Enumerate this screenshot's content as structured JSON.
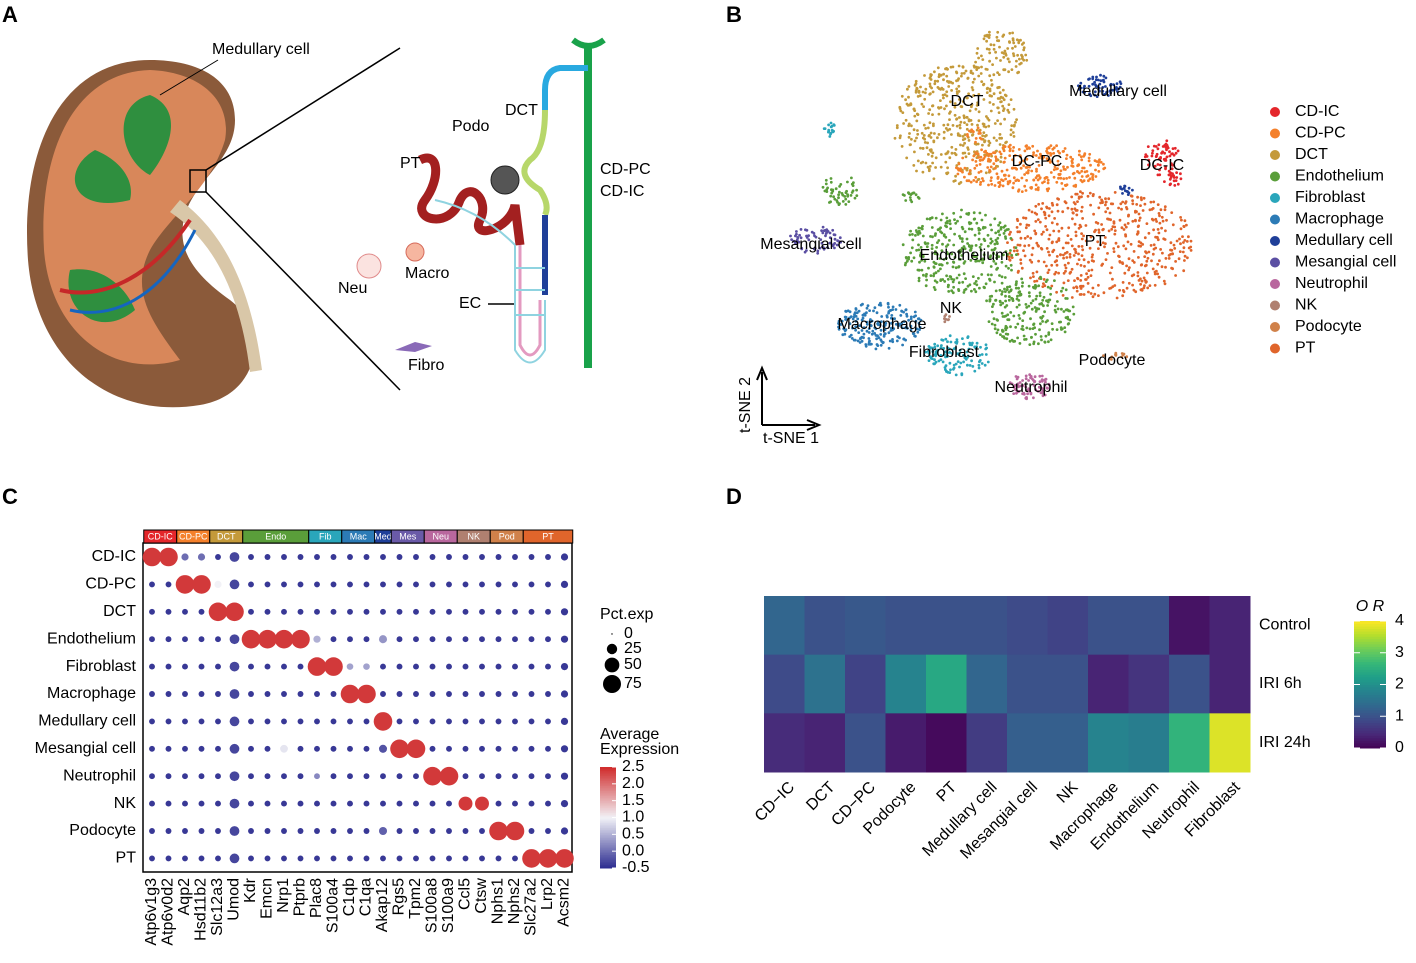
{
  "panel_labels": [
    "A",
    "B",
    "C",
    "D"
  ],
  "diagram": {
    "labels": [
      "Medullary cell",
      "DCT",
      "Podo",
      "PT",
      "CD-PC",
      "CD-IC",
      "Neu",
      "Macro",
      "EC",
      "Fibro"
    ]
  },
  "tsne": {
    "type": "scatter",
    "x_label": "t-SNE 1",
    "y_label": "t-SNE 2",
    "cell_types": [
      {
        "name": "CD-IC",
        "color": "#e4262b"
      },
      {
        "name": "CD-PC",
        "color": "#f4802b"
      },
      {
        "name": "DCT",
        "color": "#c49a3a"
      },
      {
        "name": "Endothelium",
        "color": "#5a9e3a"
      },
      {
        "name": "Fibroblast",
        "color": "#2aa6bb"
      },
      {
        "name": "Macrophage",
        "color": "#2c7bb6"
      },
      {
        "name": "Medullary cell",
        "color": "#1f3f99"
      },
      {
        "name": "Mesangial cell",
        "color": "#5b4fa3"
      },
      {
        "name": "Neutrophil",
        "color": "#b9679e"
      },
      {
        "name": "NK",
        "color": "#b08070"
      },
      {
        "name": "Podocyte",
        "color": "#d0814a"
      },
      {
        "name": "PT",
        "color": "#e0652b"
      }
    ],
    "cluster_labels": [
      "DCT",
      "Medullary cell",
      "DC-PC",
      "DC-IC",
      "PT",
      "Mesangial cell",
      "Endothelium",
      "NK",
      "Macrophage",
      "Fibroblast",
      "Podocyte",
      "Neutrophil"
    ]
  },
  "dotplot": {
    "type": "dot",
    "groups": [
      {
        "name": "CD-IC",
        "color": "#e4262b",
        "genes": [
          "Atp6v1g3",
          "Atp6v0d2"
        ]
      },
      {
        "name": "CD-PC",
        "color": "#f4802b",
        "genes": [
          "Aqp2",
          "Hsd11b2"
        ]
      },
      {
        "name": "DCT",
        "color": "#c49a3a",
        "genes": [
          "Slc12a3",
          "Umod"
        ]
      },
      {
        "name": "Endo",
        "color": "#5a9e3a",
        "genes": [
          "Kdr",
          "Emcn",
          "Nrp1",
          "Ptprb"
        ]
      },
      {
        "name": "Fib",
        "color": "#2aa6bb",
        "genes": [
          "Plac8",
          "S100a4"
        ]
      },
      {
        "name": "Mac",
        "color": "#2c7bb6",
        "genes": [
          "C1qb",
          "C1qa"
        ]
      },
      {
        "name": "Med",
        "color": "#1f3f99",
        "genes": [
          "Akap12"
        ]
      },
      {
        "name": "Mes",
        "color": "#6a5aa8",
        "genes": [
          "Rgs5",
          "Tpm2"
        ]
      },
      {
        "name": "Neu",
        "color": "#b9679e",
        "genes": [
          "S100a8",
          "S100a9"
        ]
      },
      {
        "name": "NK",
        "color": "#b08070",
        "genes": [
          "Ccl5",
          "Ctsw"
        ]
      },
      {
        "name": "Pod",
        "color": "#d0814a",
        "genes": [
          "Nphs1",
          "Nphs2"
        ]
      },
      {
        "name": "PT",
        "color": "#e0652b",
        "genes": [
          "Slc27a2",
          "Lrp2",
          "Acsm2"
        ]
      }
    ],
    "rows": [
      "CD-IC",
      "CD-PC",
      "DCT",
      "Endothelium",
      "Fibroblast",
      "Macrophage",
      "Medullary cell",
      "Mesangial cell",
      "Neutrophil",
      "NK",
      "Podocyte",
      "PT"
    ],
    "pct": [
      [
        80,
        80,
        12,
        12,
        8,
        22,
        8,
        8,
        8,
        8,
        8,
        8,
        8,
        8,
        8,
        8,
        8,
        8,
        8,
        8,
        8,
        8,
        8,
        8,
        8,
        12
      ],
      [
        8,
        8,
        80,
        80,
        12,
        22,
        8,
        8,
        8,
        8,
        8,
        8,
        8,
        8,
        8,
        8,
        8,
        8,
        8,
        8,
        8,
        8,
        8,
        8,
        8,
        12
      ],
      [
        8,
        8,
        8,
        8,
        80,
        80,
        8,
        8,
        8,
        8,
        8,
        8,
        8,
        8,
        8,
        8,
        8,
        8,
        8,
        8,
        8,
        8,
        8,
        8,
        8,
        12
      ],
      [
        8,
        8,
        8,
        8,
        8,
        22,
        80,
        80,
        80,
        80,
        12,
        8,
        8,
        8,
        15,
        8,
        8,
        8,
        8,
        8,
        8,
        8,
        8,
        8,
        8,
        12
      ],
      [
        8,
        8,
        8,
        8,
        8,
        22,
        8,
        8,
        8,
        8,
        80,
        80,
        10,
        10,
        8,
        8,
        8,
        8,
        8,
        8,
        8,
        8,
        8,
        8,
        8,
        12
      ],
      [
        8,
        8,
        8,
        8,
        8,
        22,
        8,
        8,
        8,
        8,
        8,
        8,
        80,
        80,
        8,
        8,
        8,
        8,
        8,
        8,
        8,
        8,
        8,
        8,
        8,
        12
      ],
      [
        8,
        8,
        8,
        8,
        8,
        22,
        8,
        8,
        8,
        8,
        8,
        8,
        8,
        8,
        80,
        8,
        8,
        8,
        8,
        8,
        8,
        8,
        8,
        8,
        8,
        12
      ],
      [
        8,
        8,
        8,
        8,
        8,
        22,
        8,
        8,
        14,
        8,
        8,
        8,
        8,
        8,
        15,
        80,
        80,
        8,
        8,
        8,
        8,
        8,
        8,
        8,
        8,
        12
      ],
      [
        8,
        8,
        8,
        8,
        8,
        22,
        8,
        8,
        8,
        8,
        8,
        8,
        8,
        8,
        8,
        8,
        8,
        80,
        80,
        8,
        8,
        8,
        8,
        8,
        8,
        12
      ],
      [
        8,
        8,
        8,
        8,
        8,
        22,
        8,
        8,
        8,
        8,
        8,
        8,
        8,
        8,
        8,
        8,
        8,
        8,
        8,
        45,
        45,
        8,
        8,
        8,
        8,
        12
      ],
      [
        8,
        8,
        8,
        8,
        8,
        22,
        8,
        8,
        8,
        8,
        8,
        8,
        8,
        8,
        15,
        8,
        8,
        8,
        8,
        8,
        8,
        80,
        80,
        8,
        8,
        12
      ],
      [
        8,
        8,
        8,
        8,
        8,
        22,
        8,
        8,
        8,
        8,
        8,
        8,
        8,
        8,
        8,
        8,
        8,
        8,
        8,
        8,
        8,
        8,
        8,
        80,
        80,
        80
      ]
    ],
    "expr": [
      [
        2.4,
        2.4,
        0,
        0,
        -0.4,
        -0.3,
        -0.4,
        -0.4,
        -0.4,
        -0.4,
        -0.4,
        -0.4,
        -0.4,
        -0.4,
        -0.4,
        -0.4,
        -0.4,
        -0.4,
        -0.4,
        -0.4,
        -0.4,
        -0.4,
        -0.4,
        -0.4,
        -0.4,
        -0.4
      ],
      [
        -0.4,
        -0.4,
        2.4,
        2.4,
        1,
        -0.3,
        -0.4,
        -0.4,
        -0.4,
        -0.4,
        -0.4,
        -0.4,
        -0.4,
        -0.4,
        -0.4,
        -0.4,
        -0.4,
        -0.4,
        -0.4,
        -0.4,
        -0.4,
        -0.4,
        -0.4,
        -0.4,
        -0.4,
        -0.4
      ],
      [
        -0.4,
        -0.4,
        -0.4,
        -0.4,
        2.4,
        2.4,
        -0.4,
        -0.4,
        -0.4,
        -0.4,
        -0.4,
        -0.4,
        -0.4,
        -0.4,
        -0.4,
        -0.4,
        -0.4,
        -0.4,
        -0.4,
        -0.4,
        -0.4,
        -0.4,
        -0.4,
        -0.4,
        -0.4,
        -0.4
      ],
      [
        -0.4,
        -0.4,
        -0.4,
        -0.4,
        -0.4,
        -0.3,
        2.4,
        2.4,
        2.4,
        2.4,
        0.5,
        -0.4,
        -0.4,
        -0.4,
        0.3,
        -0.4,
        -0.4,
        -0.4,
        -0.4,
        -0.4,
        -0.4,
        -0.4,
        -0.4,
        -0.4,
        -0.4,
        -0.4
      ],
      [
        -0.4,
        -0.4,
        -0.4,
        -0.4,
        -0.4,
        -0.3,
        -0.4,
        -0.4,
        -0.4,
        -0.4,
        2.4,
        2.4,
        0.4,
        0.4,
        -0.4,
        -0.4,
        -0.4,
        -0.4,
        -0.4,
        -0.4,
        -0.4,
        -0.4,
        -0.4,
        -0.4,
        -0.4,
        -0.4
      ],
      [
        -0.4,
        -0.4,
        -0.4,
        -0.4,
        -0.4,
        -0.3,
        -0.4,
        -0.4,
        -0.4,
        -0.4,
        -0.4,
        -0.4,
        2.4,
        2.4,
        -0.4,
        -0.4,
        -0.4,
        -0.4,
        -0.4,
        -0.4,
        -0.4,
        -0.4,
        -0.4,
        -0.4,
        -0.4,
        -0.4
      ],
      [
        -0.4,
        -0.4,
        -0.4,
        -0.4,
        -0.4,
        -0.3,
        -0.4,
        -0.4,
        -0.4,
        -0.4,
        -0.4,
        -0.4,
        -0.4,
        -0.4,
        2.4,
        -0.4,
        -0.4,
        -0.4,
        -0.4,
        -0.4,
        -0.4,
        -0.4,
        -0.4,
        -0.4,
        -0.4,
        -0.4
      ],
      [
        -0.4,
        -0.4,
        -0.4,
        -0.4,
        -0.4,
        -0.3,
        -0.4,
        -0.4,
        0.9,
        -0.4,
        -0.4,
        -0.4,
        -0.4,
        -0.4,
        -0.2,
        2.4,
        2.4,
        -0.4,
        -0.4,
        -0.4,
        -0.4,
        -0.4,
        -0.4,
        -0.4,
        -0.4,
        -0.4
      ],
      [
        -0.4,
        -0.4,
        -0.4,
        -0.4,
        -0.4,
        -0.3,
        -0.4,
        -0.4,
        -0.4,
        -0.4,
        0.2,
        -0.4,
        -0.4,
        -0.4,
        -0.4,
        -0.4,
        -0.4,
        2.4,
        2.4,
        -0.4,
        -0.4,
        -0.4,
        -0.4,
        -0.4,
        -0.4,
        -0.4
      ],
      [
        -0.4,
        -0.4,
        -0.4,
        -0.4,
        -0.4,
        -0.3,
        -0.4,
        -0.4,
        -0.4,
        -0.4,
        -0.4,
        -0.4,
        -0.4,
        -0.4,
        -0.4,
        -0.4,
        -0.4,
        -0.4,
        -0.4,
        2.4,
        2.4,
        -0.4,
        -0.4,
        -0.4,
        -0.4,
        -0.4
      ],
      [
        -0.4,
        -0.4,
        -0.4,
        -0.4,
        -0.4,
        -0.3,
        -0.4,
        -0.4,
        -0.4,
        -0.4,
        -0.4,
        -0.4,
        -0.4,
        -0.4,
        -0.1,
        -0.4,
        -0.4,
        -0.4,
        -0.4,
        -0.4,
        -0.4,
        2.4,
        2.4,
        -0.4,
        -0.4,
        -0.4
      ],
      [
        -0.4,
        -0.4,
        -0.4,
        -0.4,
        -0.4,
        -0.3,
        -0.4,
        -0.4,
        -0.4,
        -0.4,
        -0.4,
        -0.4,
        -0.4,
        -0.4,
        -0.4,
        -0.4,
        -0.4,
        -0.4,
        -0.4,
        -0.4,
        -0.4,
        -0.4,
        -0.4,
        2.4,
        2.4,
        2.4
      ]
    ],
    "size_title": "Pct.exp",
    "size_ticks": [
      0,
      25,
      50,
      75
    ],
    "color_title": [
      "Average",
      "Expression"
    ],
    "color_range": [
      -0.5,
      2.5
    ],
    "color_ticks": [
      2.5,
      {
        "value": 2,
        "label": "2.0"
      },
      1.5,
      {
        "value": 1,
        "label": "1.0"
      },
      0.5,
      {
        "value": 0,
        "label": "0.0"
      },
      -0.5
    ],
    "color_low": "#2b2b8f",
    "color_mid": "#f2f2f7",
    "color_high": "#d02c2c"
  },
  "heatmap": {
    "type": "heatmap",
    "columns": [
      "CD−IC",
      "DCT",
      "CD−PC",
      "Podocyte",
      "PT",
      "Medullary cell",
      "Mesangial cell",
      "NK",
      "Macrophage",
      "Endothelium",
      "Neutrophil",
      "Fibroblast"
    ],
    "rows": [
      "Control",
      "IRI 6h",
      "IRI 24h"
    ],
    "values": [
      [
        1.3,
        1.0,
        1.1,
        1.0,
        1.0,
        1.0,
        0.9,
        0.8,
        1.0,
        1.0,
        0.2,
        0.4
      ],
      [
        0.9,
        1.5,
        0.8,
        1.8,
        2.4,
        1.3,
        1.0,
        1.0,
        0.4,
        0.6,
        1.0,
        0.4
      ],
      [
        0.5,
        0.4,
        1.0,
        0.3,
        0.1,
        0.7,
        1.2,
        1.2,
        1.8,
        1.7,
        2.6,
        3.8
      ]
    ],
    "colorbar_title": "O R",
    "colorbar_range": [
      0,
      4
    ],
    "colorbar_ticks": [
      0,
      1,
      2,
      3,
      4
    ],
    "colormap": "viridis"
  }
}
